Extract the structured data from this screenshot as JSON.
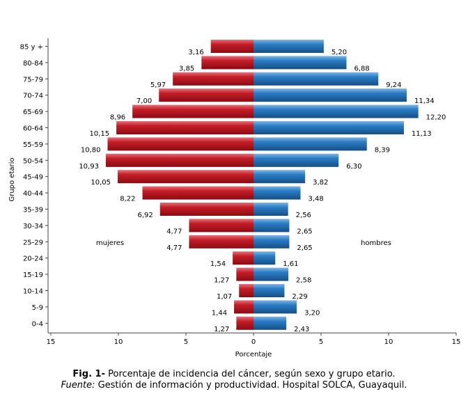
{
  "chart_data": {
    "type": "bar",
    "orientation": "horizontal",
    "categories": [
      "0-4",
      "5-9",
      "10-14",
      "15-19",
      "20-24",
      "25-29",
      "30-34",
      "35-39",
      "40-44",
      "45-49",
      "50-54",
      "55-59",
      "60-64",
      "65-69",
      "70-74",
      "75-79",
      "80-84",
      "85 y +"
    ],
    "series": [
      {
        "name": "mujeres",
        "color": "#b5121b",
        "values": [
          1.27,
          1.44,
          1.07,
          1.27,
          1.54,
          4.77,
          4.77,
          6.92,
          8.22,
          10.05,
          10.93,
          10.8,
          10.15,
          8.96,
          7.0,
          5.97,
          3.85,
          3.16
        ],
        "labels": [
          "1,27",
          "1,44",
          "1,07",
          "1,27",
          "1,54",
          "4,77",
          "4,77",
          "6,92",
          "8,22",
          "10,05",
          "10,93",
          "10,80",
          "10,15",
          "8,96",
          "7,00",
          "5,97",
          "3,85",
          "3,16"
        ]
      },
      {
        "name": "hombres",
        "color": "#1f6fb5",
        "values": [
          2.43,
          3.2,
          2.29,
          2.58,
          1.61,
          2.65,
          2.65,
          2.56,
          3.48,
          3.82,
          6.3,
          8.39,
          11.13,
          12.2,
          11.34,
          9.24,
          6.88,
          5.2
        ],
        "labels": [
          "2,43",
          "3,20",
          "2,29",
          "2,58",
          "1,61",
          "2,65",
          "2,65",
          "2,56",
          "3,48",
          "3,82",
          "6,30",
          "8,39",
          "11,13",
          "12,20",
          "11,34",
          "9,24",
          "6,88",
          "5,20"
        ]
      }
    ],
    "xlabel": "Porcentaje",
    "ylabel": "Grupo etario",
    "xlim": [
      -15,
      15
    ],
    "xticks": [
      -15,
      -10,
      -5,
      0,
      5,
      10,
      15
    ],
    "xtick_labels": [
      "15",
      "10",
      "5",
      "0",
      "5",
      "10",
      "15"
    ],
    "grid": false
  },
  "caption": {
    "fig_label": "Fig. 1-",
    "fig_text": " Porcentaje de incidencia del cáncer, según sexo y grupo etario.",
    "source_label": "Fuente:",
    "source_text": " Gestión de información y productividad. Hospital SOLCA, Guayaquil."
  }
}
